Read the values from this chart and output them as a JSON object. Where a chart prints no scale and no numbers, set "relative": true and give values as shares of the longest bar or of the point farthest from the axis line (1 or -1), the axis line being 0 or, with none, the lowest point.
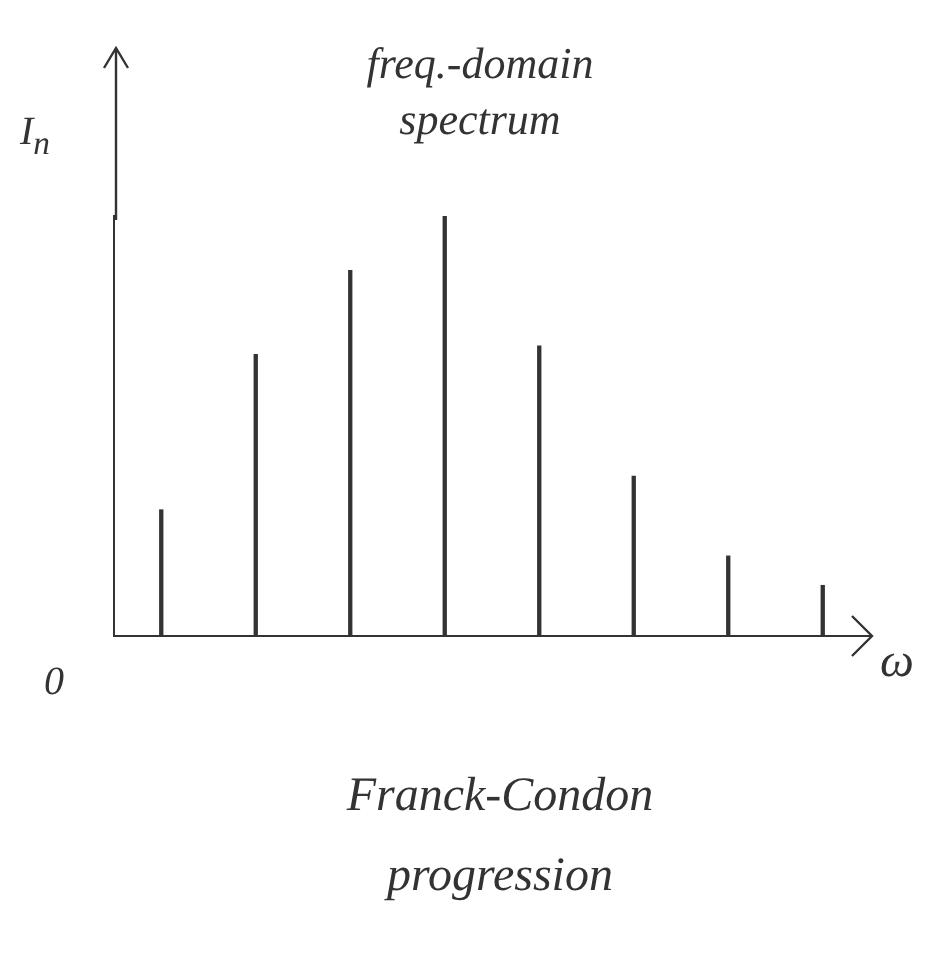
{
  "chart_data": {
    "type": "bar",
    "title": "freq.-domain spectrum",
    "xlabel": "ω",
    "ylabel": "I$_{n}$",
    "annotations": [
      "0",
      "Franck-Condon progression"
    ],
    "categories": [
      null,
      null,
      null,
      null,
      null,
      null,
      null,
      null
    ],
    "values": [
      0.3,
      0.67,
      0.87,
      1,
      0.69,
      0.38,
      0.19,
      0.12
    ],
    "color": "#333333",
    "relative": true
  }
}
